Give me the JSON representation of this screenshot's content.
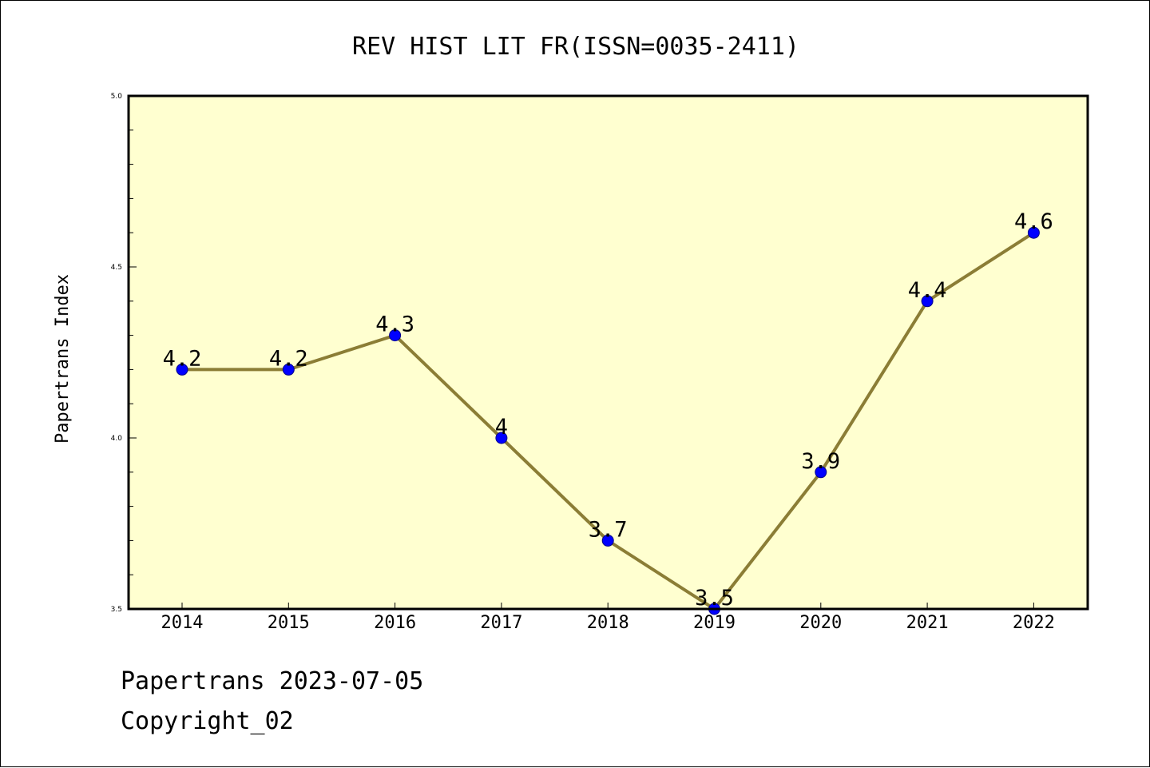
{
  "chart_data": {
    "type": "line",
    "title": "REV HIST LIT FR(ISSN=0035-2411)",
    "xlabel": "",
    "ylabel": "Papertrans Index",
    "categories": [
      "2014",
      "2015",
      "2016",
      "2017",
      "2018",
      "2019",
      "2020",
      "2021",
      "2022"
    ],
    "series": [
      {
        "values": [
          4.2,
          4.2,
          4.3,
          4.0,
          3.7,
          3.5,
          3.9,
          4.4,
          4.6
        ],
        "data_labels": [
          "4.2",
          "4.2",
          "4.3",
          "4",
          "3.7",
          "3.5",
          "3.9",
          "4.4",
          "4.6"
        ],
        "line_color": "#8b7d35",
        "marker_color": "#0000ff"
      }
    ],
    "ylim": [
      3.5,
      5.0
    ],
    "yticks": [
      "3.5",
      "4.0",
      "4.5",
      "5.0"
    ],
    "grid": false,
    "plot_background": "#ffffd0"
  },
  "footer": {
    "date_line": "Papertrans 2023-07-05",
    "copyright_line": "Copyright_02"
  }
}
